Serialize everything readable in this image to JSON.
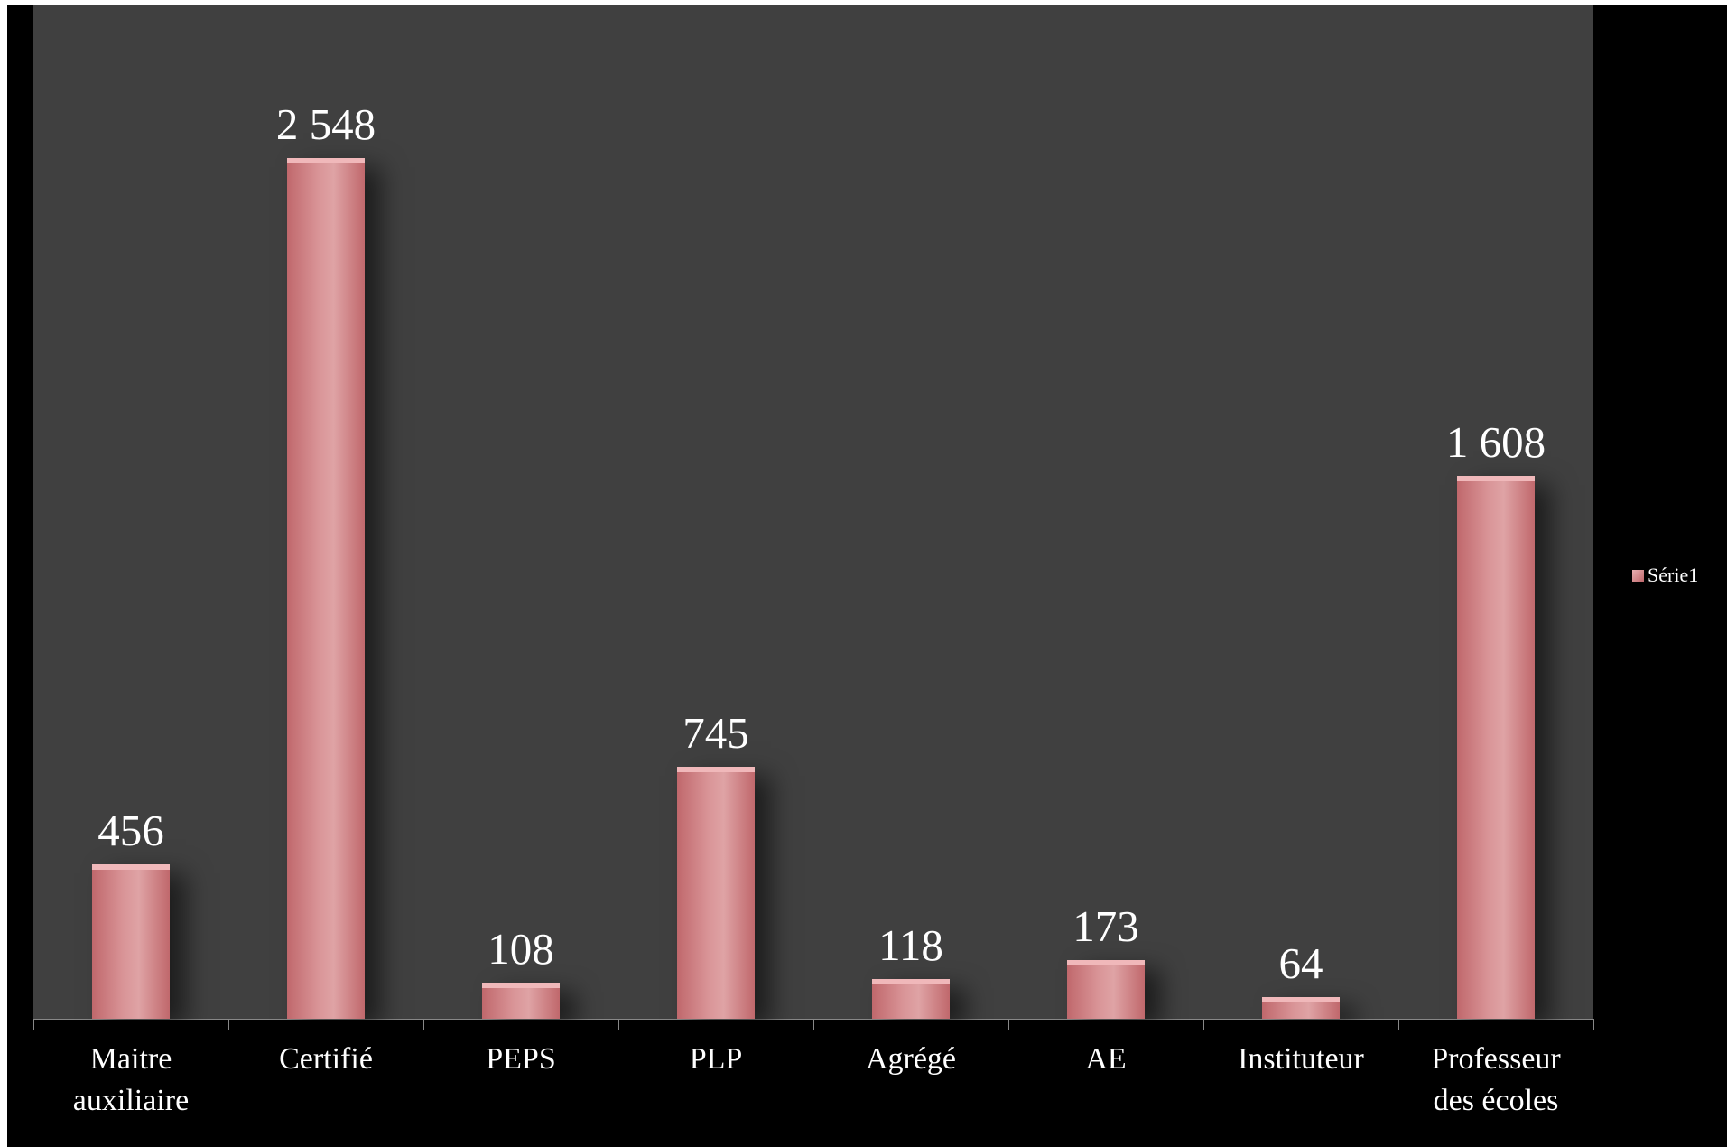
{
  "chart_data": {
    "type": "bar",
    "categories": [
      "Maitre auxiliaire",
      "Certifié",
      "PEPS",
      "PLP",
      "Agrégé",
      "AE",
      "Instituteur",
      "Professeur des écoles"
    ],
    "series": [
      {
        "name": "Série1",
        "color": "#c0686c",
        "values": [
          456,
          2548,
          108,
          745,
          118,
          173,
          64,
          1608
        ],
        "value_labels": [
          "456",
          "2 548",
          "108",
          "745",
          "118",
          "173",
          "64",
          "1 608"
        ]
      }
    ],
    "ylim": [
      0,
      3000
    ],
    "legend": "right"
  }
}
